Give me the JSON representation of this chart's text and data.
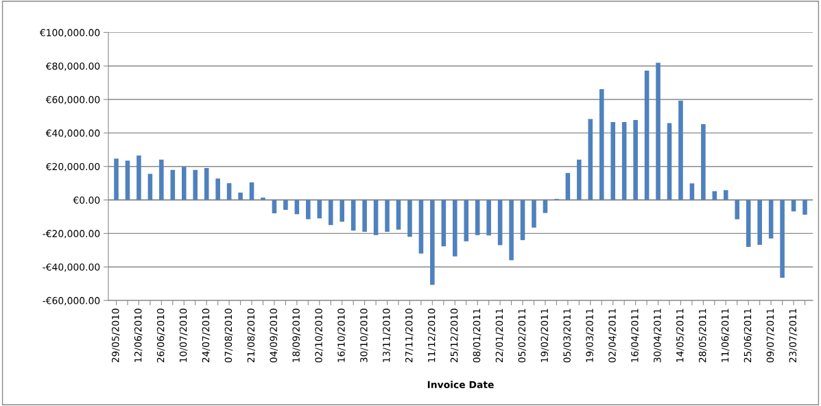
{
  "chart_data": {
    "type": "bar",
    "xlabel": "Invoice Date",
    "categories": [
      "29/05/2010",
      null,
      "12/06/2010",
      null,
      "26/06/2010",
      null,
      "10/07/2010",
      null,
      "24/07/2010",
      null,
      "07/08/2010",
      null,
      "21/08/2010",
      null,
      "04/09/2010",
      null,
      "18/09/2010",
      null,
      "02/10/2010",
      null,
      "16/10/2010",
      null,
      "30/10/2010",
      null,
      "13/11/2010",
      null,
      "27/11/2010",
      null,
      "11/12/2010",
      null,
      "25/12/2010",
      null,
      "08/01/2011",
      null,
      "22/01/2011",
      null,
      "05/02/2011",
      null,
      "19/02/2011",
      null,
      "05/03/2011",
      null,
      "19/03/2011",
      null,
      "02/04/2011",
      null,
      "16/04/2011",
      null,
      "30/04/2011",
      null,
      "14/05/2011",
      null,
      "28/05/2011",
      null,
      "11/06/2011",
      null,
      "25/06/2011",
      null,
      "09/07/2011",
      null,
      "23/07/2011",
      null
    ],
    "values": [
      24700,
      23500,
      26500,
      15600,
      24100,
      17900,
      19800,
      17900,
      19100,
      12800,
      10000,
      4400,
      10500,
      1400,
      -8000,
      -5900,
      -8500,
      -11500,
      -11000,
      -15000,
      -13000,
      -18300,
      -19000,
      -21000,
      -19000,
      -17700,
      -22000,
      -32000,
      -50700,
      -27700,
      -33700,
      -24700,
      -21000,
      -21200,
      -27000,
      -36000,
      -24000,
      -16500,
      -7800,
      600,
      16100,
      24100,
      48300,
      66200,
      46500,
      46500,
      47700,
      77200,
      81900,
      45900,
      59300,
      9900,
      45300,
      5200,
      5900,
      -11500,
      -28000,
      -26800,
      -23000,
      -46500,
      -6800,
      -8800
    ],
    "color": "#4f81bd",
    "ylim": [
      -60000,
      100000
    ],
    "yticks": [
      {
        "value": -60000,
        "label": "-€60,000.00"
      },
      {
        "value": -40000,
        "label": "-€40,000.00"
      },
      {
        "value": -20000,
        "label": "-€20,000.00"
      },
      {
        "value": 0,
        "label": "€0.00"
      },
      {
        "value": 20000,
        "label": "€20,000.00"
      },
      {
        "value": 40000,
        "label": "€40,000.00"
      },
      {
        "value": 60000,
        "label": "€60,000.00"
      },
      {
        "value": 80000,
        "label": "€80,000.00"
      },
      {
        "value": 100000,
        "label": "€100,000.00"
      }
    ],
    "grid": "y",
    "legend": false
  }
}
